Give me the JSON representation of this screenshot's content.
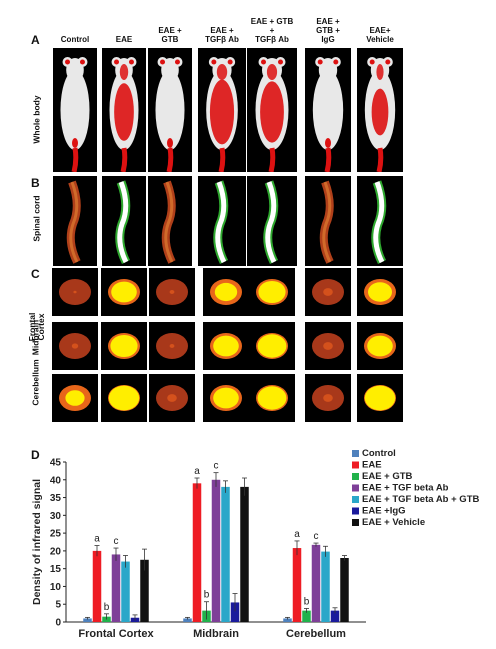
{
  "panels": {
    "a": "A",
    "b": "B",
    "c": "C",
    "d": "D"
  },
  "column_headers": [
    "Control",
    "EAE",
    "EAE +\nGTB",
    "EAE +\nTGFβ Ab",
    "EAE + GTB\n+\nTGFβ Ab",
    "EAE +\nGTB +\nIgG",
    "EAE+\nVehicle"
  ],
  "row_labels": {
    "whole_body": "Whole body",
    "spinal_cord": "Spinal cord",
    "frontal_cortex": "Frontal\nCortex",
    "midbrain": "Midbrain",
    "cerebellum": "Cerebellum"
  },
  "colors": {
    "Control": "#4f81bd",
    "EAE": "#ee1c24",
    "EAE + GTB": "#21b24b",
    "EAE + TGF beta Ab": "#7e3f98",
    "EAE + TGF beta Ab + GTB": "#2aa7c9",
    "EAE +IgG": "#1a1a9c",
    "EAE  + Vehicle": "#111111"
  },
  "chart_data": {
    "type": "bar",
    "ylabel": "Density of infrared signal",
    "xlabel": "",
    "ylim": [
      0,
      45
    ],
    "yticks": [
      0,
      5,
      10,
      15,
      20,
      25,
      30,
      35,
      40,
      45
    ],
    "grid": false,
    "legend_position": "top-right",
    "categories": [
      "Frontal Cortex",
      "Midbrain",
      "Cerebellum"
    ],
    "series": [
      {
        "name": "Control",
        "values": [
          1.0,
          1.0,
          1.0
        ],
        "errors": [
          0.3,
          0.3,
          0.3
        ]
      },
      {
        "name": "EAE",
        "values": [
          20.0,
          39.0,
          20.8
        ],
        "errors": [
          1.5,
          1.5,
          2.0
        ]
      },
      {
        "name": "EAE + GTB",
        "values": [
          1.5,
          3.2,
          3.2
        ],
        "errors": [
          0.8,
          2.5,
          0.6
        ]
      },
      {
        "name": "EAE + TGF beta Ab",
        "values": [
          19.0,
          40.0,
          21.7
        ],
        "errors": [
          1.8,
          2.0,
          0.5
        ]
      },
      {
        "name": "EAE + TGF beta Ab + GTB",
        "values": [
          17.0,
          38.0,
          19.8
        ],
        "errors": [
          1.7,
          1.7,
          1.5
        ]
      },
      {
        "name": "EAE +IgG",
        "values": [
          1.2,
          5.5,
          3.2
        ],
        "errors": [
          0.8,
          2.5,
          0.8
        ]
      },
      {
        "name": "EAE  + Vehicle",
        "values": [
          17.5,
          38.0,
          18.0
        ],
        "errors": [
          3.0,
          2.5,
          0.7
        ]
      }
    ],
    "annotations": [
      {
        "category": 0,
        "series": 1,
        "text": "a"
      },
      {
        "category": 0,
        "series": 2,
        "text": "b"
      },
      {
        "category": 0,
        "series": 3,
        "text": "c"
      },
      {
        "category": 1,
        "series": 1,
        "text": "a"
      },
      {
        "category": 1,
        "series": 2,
        "text": "b"
      },
      {
        "category": 1,
        "series": 3,
        "text": "c"
      },
      {
        "category": 2,
        "series": 1,
        "text": "a"
      },
      {
        "category": 2,
        "series": 2,
        "text": "b"
      },
      {
        "category": 2,
        "series": 3,
        "text": "c"
      }
    ]
  }
}
